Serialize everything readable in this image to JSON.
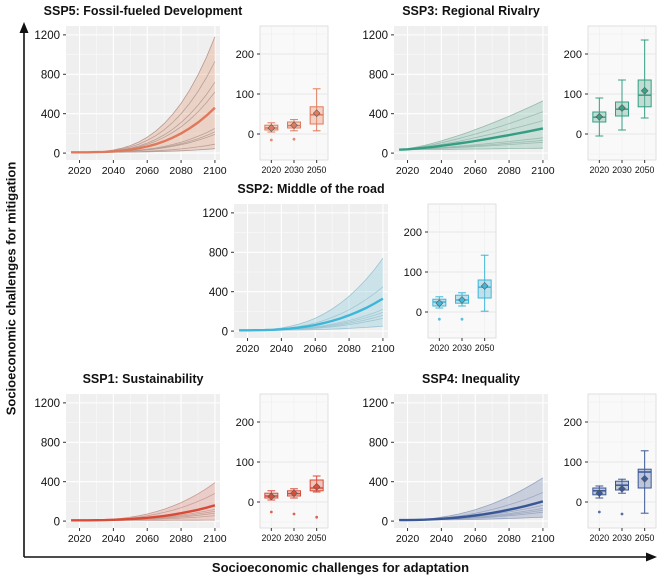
{
  "figure": {
    "y_axis_label": "Socioeconomic challenges for mitigation",
    "x_axis_label": "Socioeconomic challenges for adaptation"
  },
  "chart_data": [
    {
      "panel": "SSP5",
      "title": "SSP5: Fossil-fueled Development",
      "type": "line+area with companion box plot",
      "colors": {
        "main": "#e0795b",
        "thin": "#b39a92",
        "band": "rgba(226,141,106,0.30)",
        "box_fill": "rgba(233,152,120,0.40)"
      },
      "line_chart": {
        "xlabel_ticks": [
          2020,
          2040,
          2060,
          2080,
          2100
        ],
        "y_ticks": [
          0,
          400,
          800,
          1200
        ],
        "x_range": [
          2015,
          2100
        ],
        "ylim": [
          -70,
          1290
        ],
        "start_value": 8,
        "growth_gamma": 3.2,
        "band_end": [
          45,
          1180
        ],
        "thick_line_end": 460,
        "thin_line_ends": [
          930,
          720,
          620,
          250,
          215,
          190,
          90
        ]
      },
      "box_chart": {
        "categories": [
          "2020",
          "2030",
          "2050"
        ],
        "y_ticks": [
          0,
          100,
          200
        ],
        "ylim": [
          -65,
          270
        ],
        "boxes": [
          {
            "low": 5,
            "q1": 10,
            "median": 15,
            "q3": 22,
            "high": 28,
            "mean": 15,
            "outliers": [
              -15
            ]
          },
          {
            "low": 8,
            "q1": 15,
            "median": 21,
            "q3": 30,
            "high": 36,
            "mean": 22,
            "outliers": [
              -13
            ]
          },
          {
            "low": 8,
            "q1": 25,
            "median": 48,
            "q3": 68,
            "high": 113,
            "mean": 52,
            "outliers": []
          }
        ]
      }
    },
    {
      "panel": "SSP3",
      "title": "SSP3: Regional Rivalry",
      "type": "line+area with companion box plot",
      "colors": {
        "main": "#359e82",
        "thin": "#96b8ad",
        "band": "rgba(100,178,152,0.28)",
        "box_fill": "rgba(110,180,155,0.40)"
      },
      "line_chart": {
        "xlabel_ticks": [
          2020,
          2040,
          2060,
          2080,
          2100
        ],
        "y_ticks": [
          0,
          400,
          800,
          1200
        ],
        "x_range": [
          2015,
          2100
        ],
        "ylim": [
          -70,
          1290
        ],
        "start_value": 35,
        "growth_gamma": 1.4,
        "band_end": [
          50,
          530
        ],
        "thick_line_end": 250,
        "thin_line_ends": [
          420,
          330,
          260,
          155,
          130,
          110
        ]
      },
      "box_chart": {
        "categories": [
          "2020",
          "2030",
          "2050"
        ],
        "y_ticks": [
          0,
          100,
          200
        ],
        "ylim": [
          -65,
          270
        ],
        "boxes": [
          {
            "low": -5,
            "q1": 30,
            "median": 42,
            "q3": 55,
            "high": 90,
            "mean": 43,
            "outliers": []
          },
          {
            "low": 10,
            "q1": 45,
            "median": 62,
            "q3": 80,
            "high": 135,
            "mean": 65,
            "outliers": []
          },
          {
            "low": 40,
            "q1": 68,
            "median": 97,
            "q3": 135,
            "high": 235,
            "mean": 108,
            "outliers": []
          }
        ]
      }
    },
    {
      "panel": "SSP2",
      "title": "SSP2: Middle of the road",
      "type": "line+area with companion box plot",
      "colors": {
        "main": "#3fb5d8",
        "thin": "#9cc4d2",
        "band": "rgba(120,195,220,0.30)",
        "box_fill": "rgba(120,195,220,0.45)"
      },
      "line_chart": {
        "xlabel_ticks": [
          2020,
          2040,
          2060,
          2080,
          2100
        ],
        "y_ticks": [
          0,
          400,
          800,
          1200
        ],
        "x_range": [
          2015,
          2100
        ],
        "ylim": [
          -70,
          1290
        ],
        "start_value": 8,
        "growth_gamma": 2.8,
        "band_end": [
          50,
          740
        ],
        "thick_line_end": 330,
        "thin_line_ends": [
          450,
          220,
          190,
          160,
          130
        ]
      },
      "box_chart": {
        "categories": [
          "2020",
          "2030",
          "2050"
        ],
        "y_ticks": [
          0,
          100,
          200
        ],
        "ylim": [
          -65,
          270
        ],
        "boxes": [
          {
            "low": 10,
            "q1": 15,
            "median": 25,
            "q3": 32,
            "high": 38,
            "mean": 22,
            "outliers": [
              -18
            ]
          },
          {
            "low": 15,
            "q1": 22,
            "median": 30,
            "q3": 42,
            "high": 48,
            "mean": 30,
            "outliers": [
              -18
            ]
          },
          {
            "low": 2,
            "q1": 35,
            "median": 62,
            "q3": 80,
            "high": 142,
            "mean": 65,
            "outliers": []
          }
        ]
      }
    },
    {
      "panel": "SSP1",
      "title": "SSP1: Sustainability",
      "type": "line+area with companion box plot",
      "colors": {
        "main": "#d84b38",
        "thin": "#c49b90",
        "band": "rgba(222,118,100,0.28)",
        "box_fill": "rgba(226,120,100,0.40)"
      },
      "line_chart": {
        "xlabel_ticks": [
          2020,
          2040,
          2060,
          2080,
          2100
        ],
        "y_ticks": [
          0,
          400,
          800,
          1200
        ],
        "x_range": [
          2015,
          2100
        ],
        "ylim": [
          -70,
          1290
        ],
        "start_value": 8,
        "growth_gamma": 2.8,
        "band_end": [
          10,
          390
        ],
        "thick_line_end": 160,
        "thin_line_ends": [
          280,
          120,
          100,
          80,
          55
        ]
      },
      "box_chart": {
        "categories": [
          "2020",
          "2030",
          "2050"
        ],
        "y_ticks": [
          0,
          100,
          200
        ],
        "ylim": [
          -65,
          270
        ],
        "boxes": [
          {
            "low": 5,
            "q1": 10,
            "median": 15,
            "q3": 22,
            "high": 28,
            "mean": 14,
            "outliers": [
              -25
            ]
          },
          {
            "low": 10,
            "q1": 15,
            "median": 21,
            "q3": 28,
            "high": 33,
            "mean": 22,
            "outliers": [
              -30
            ]
          },
          {
            "low": 25,
            "q1": 28,
            "median": 35,
            "q3": 55,
            "high": 65,
            "mean": 38,
            "outliers": [
              -38
            ]
          }
        ]
      }
    },
    {
      "panel": "SSP4",
      "title": "SSP4: Inequality",
      "type": "line+area with companion box plot",
      "colors": {
        "main": "#3a5795",
        "thin": "#98a5bf",
        "band": "rgba(110,130,175,0.30)",
        "box_fill": "rgba(115,135,180,0.45)"
      },
      "line_chart": {
        "xlabel_ticks": [
          2020,
          2040,
          2060,
          2080,
          2100
        ],
        "y_ticks": [
          0,
          400,
          800,
          1200
        ],
        "x_range": [
          2015,
          2100
        ],
        "ylim": [
          -70,
          1290
        ],
        "start_value": 10,
        "growth_gamma": 2.2,
        "band_end": [
          40,
          440
        ],
        "thick_line_end": 200,
        "thin_line_ends": [
          290,
          160,
          130,
          110,
          90
        ]
      },
      "box_chart": {
        "categories": [
          "2020",
          "2030",
          "2050"
        ],
        "y_ticks": [
          0,
          100,
          200
        ],
        "ylim": [
          -65,
          270
        ],
        "boxes": [
          {
            "low": 10,
            "q1": 18,
            "median": 28,
            "q3": 35,
            "high": 40,
            "mean": 22,
            "outliers": [
              -25
            ]
          },
          {
            "low": 22,
            "q1": 30,
            "median": 42,
            "q3": 52,
            "high": 57,
            "mean": 33,
            "outliers": [
              -30
            ]
          },
          {
            "low": -28,
            "q1": 35,
            "median": 75,
            "q3": 82,
            "high": 128,
            "mean": 58,
            "outliers": []
          }
        ]
      }
    }
  ]
}
